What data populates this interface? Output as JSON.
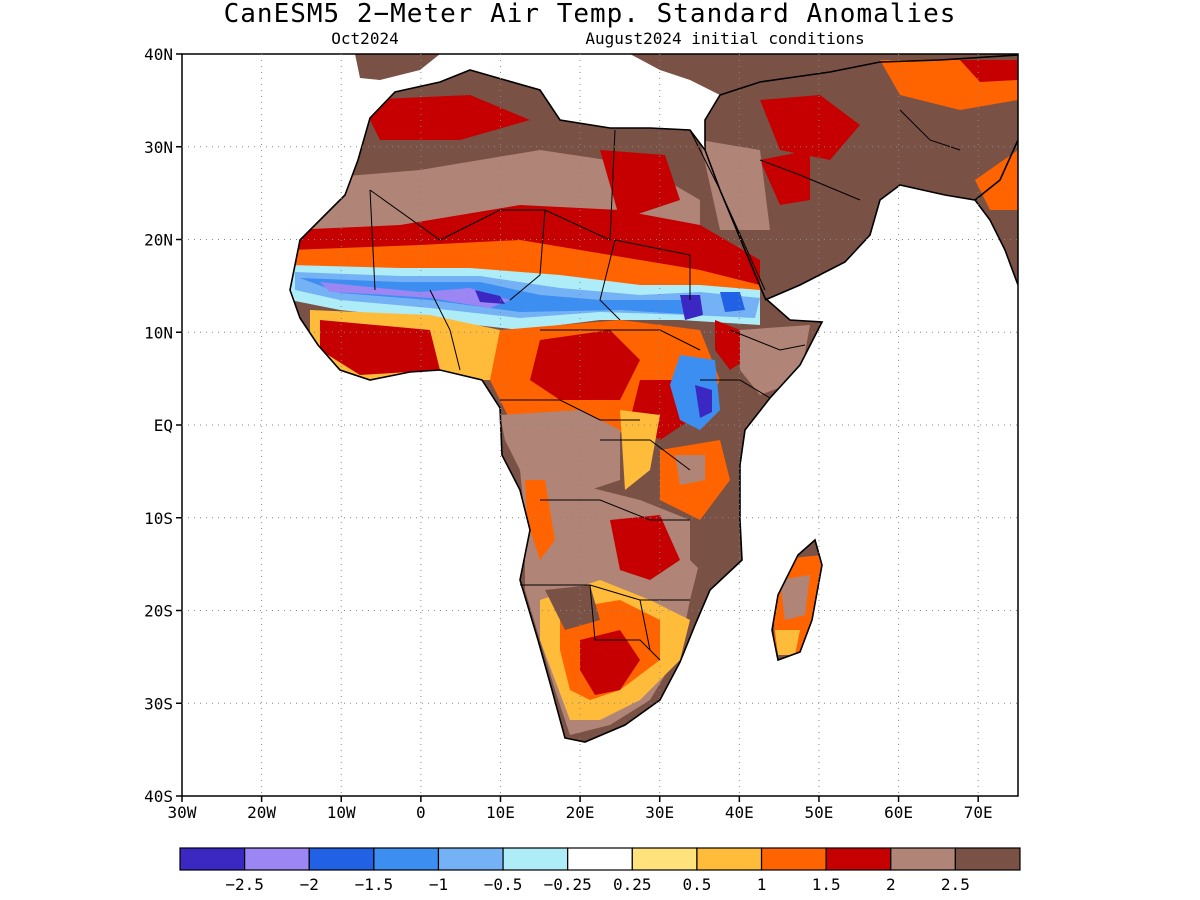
{
  "title": "CanESM5 2−Meter Air Temp. Standard Anomalies",
  "subtitle_left": "Oct2024",
  "subtitle_right": "August2024 initial conditions",
  "map": {
    "lon_range": [
      -30,
      75
    ],
    "lat_range": [
      -40,
      40
    ],
    "lat_ticks": [
      {
        "value": 40,
        "label": "40N"
      },
      {
        "value": 30,
        "label": "30N"
      },
      {
        "value": 20,
        "label": "20N"
      },
      {
        "value": 10,
        "label": "10N"
      },
      {
        "value": 0,
        "label": "EQ"
      },
      {
        "value": -10,
        "label": "10S"
      },
      {
        "value": -20,
        "label": "20S"
      },
      {
        "value": -30,
        "label": "30S"
      },
      {
        "value": -40,
        "label": "40S"
      }
    ],
    "lon_ticks": [
      {
        "value": -30,
        "label": "30W"
      },
      {
        "value": -20,
        "label": "20W"
      },
      {
        "value": -10,
        "label": "10W"
      },
      {
        "value": 0,
        "label": "0"
      },
      {
        "value": 10,
        "label": "10E"
      },
      {
        "value": 20,
        "label": "20E"
      },
      {
        "value": 30,
        "label": "30E"
      },
      {
        "value": 40,
        "label": "40E"
      },
      {
        "value": 50,
        "label": "50E"
      },
      {
        "value": 60,
        "label": "60E"
      },
      {
        "value": 70,
        "label": "70E"
      }
    ],
    "grid": "dotted"
  },
  "colorbar": {
    "colors": [
      "#3b28c3",
      "#9c86f4",
      "#2061e6",
      "#3c8ef0",
      "#74b2f5",
      "#aeecf7",
      "#ffffff",
      "#ffe27c",
      "#ffbc3a",
      "#ff6400",
      "#c60000",
      "#b08577",
      "#7a5145"
    ],
    "labels": [
      "−2.5",
      "−2",
      "−1.5",
      "−1",
      "−0.5",
      "−0.25",
      "0.25",
      "0.5",
      "1",
      "1.5",
      "2",
      "2.5"
    ]
  }
}
